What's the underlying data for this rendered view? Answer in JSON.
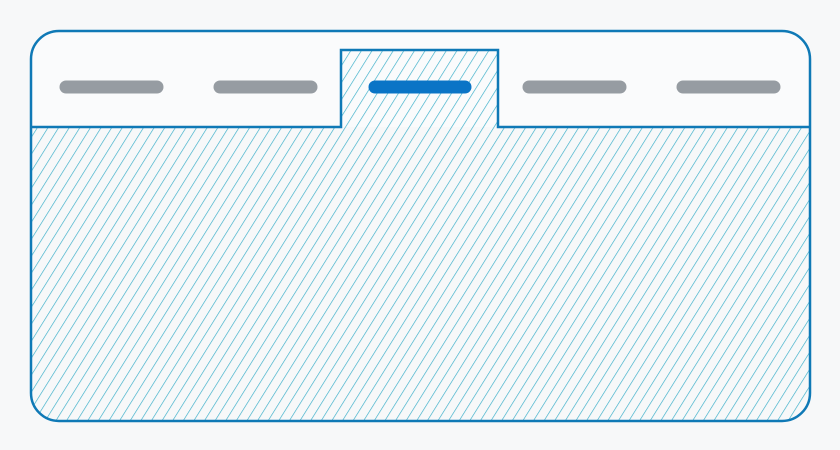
{
  "colors": {
    "background": "#f7f8f9",
    "frame_stroke": "#0f79b6",
    "hatch": "#35acc7",
    "tab_bar_fill": "#fafbfc",
    "inactive_tab": "#969ca2",
    "active_tab": "#0a74c6"
  },
  "tabs": [
    {
      "state": "inactive"
    },
    {
      "state": "inactive"
    },
    {
      "state": "active"
    },
    {
      "state": "inactive"
    },
    {
      "state": "inactive"
    }
  ],
  "active_tab_index": 2
}
